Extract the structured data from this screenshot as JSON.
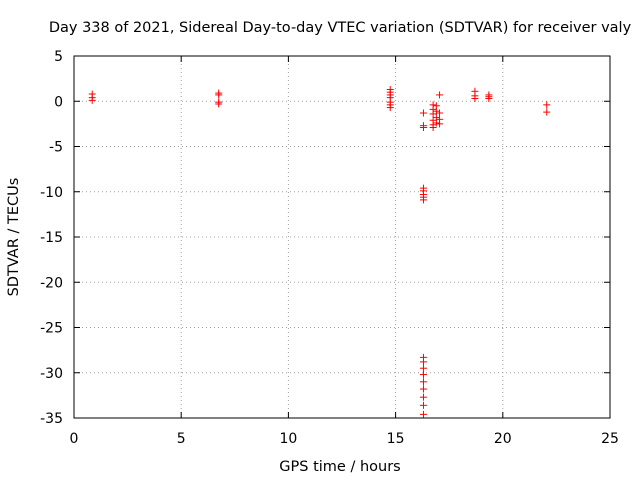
{
  "chart_data": {
    "type": "scatter",
    "title": "Day 338 of 2021, Sidereal Day-to-day VTEC variation (SDTVAR) for receiver valy",
    "xlabel": "GPS time / hours",
    "ylabel": "SDTVAR / TECUs",
    "xlim": [
      0,
      25
    ],
    "ylim": [
      -35,
      5
    ],
    "xticks": [
      0,
      5,
      10,
      15,
      20,
      25
    ],
    "yticks": [
      5,
      0,
      -5,
      -10,
      -15,
      -20,
      -25,
      -30,
      -35
    ],
    "grid": true,
    "marker": "+",
    "color": "#ff0000",
    "series": [
      {
        "name": "SDTVAR",
        "points": [
          [
            0.85,
            0.8
          ],
          [
            0.85,
            0.4
          ],
          [
            0.85,
            0.1
          ],
          [
            6.75,
            0.9
          ],
          [
            6.75,
            0.7
          ],
          [
            6.75,
            -0.1
          ],
          [
            6.75,
            -0.3
          ],
          [
            14.75,
            1.3
          ],
          [
            14.75,
            1.0
          ],
          [
            14.75,
            0.7
          ],
          [
            14.75,
            0.4
          ],
          [
            14.75,
            -0.1
          ],
          [
            14.75,
            -0.4
          ],
          [
            14.75,
            -0.7
          ],
          [
            16.3,
            -1.3
          ],
          [
            16.3,
            -2.7
          ],
          [
            16.3,
            -2.9
          ],
          [
            16.3,
            -9.6
          ],
          [
            16.3,
            -9.9
          ],
          [
            16.3,
            -10.3
          ],
          [
            16.3,
            -10.6
          ],
          [
            16.3,
            -10.9
          ],
          [
            16.3,
            -28.3
          ],
          [
            16.3,
            -28.8
          ],
          [
            16.3,
            -29.5
          ],
          [
            16.3,
            -30.2
          ],
          [
            16.3,
            -31.0
          ],
          [
            16.3,
            -31.8
          ],
          [
            16.3,
            -32.7
          ],
          [
            16.3,
            -33.6
          ],
          [
            16.3,
            -34.6
          ],
          [
            16.75,
            -0.4
          ],
          [
            16.75,
            -0.9
          ],
          [
            16.75,
            -1.4
          ],
          [
            16.75,
            -2.1
          ],
          [
            16.75,
            -2.6
          ],
          [
            16.75,
            -2.9
          ],
          [
            16.9,
            -0.5
          ],
          [
            16.9,
            -1.1
          ],
          [
            16.9,
            -1.8
          ],
          [
            16.9,
            -2.4
          ],
          [
            17.05,
            0.7
          ],
          [
            17.05,
            -1.3
          ],
          [
            17.05,
            -2.0
          ],
          [
            17.05,
            -2.5
          ],
          [
            18.7,
            1.1
          ],
          [
            18.7,
            0.6
          ],
          [
            18.7,
            0.3
          ],
          [
            19.35,
            0.7
          ],
          [
            19.35,
            0.5
          ],
          [
            19.35,
            0.3
          ],
          [
            22.05,
            -0.4
          ],
          [
            22.05,
            -1.2
          ]
        ]
      }
    ]
  }
}
